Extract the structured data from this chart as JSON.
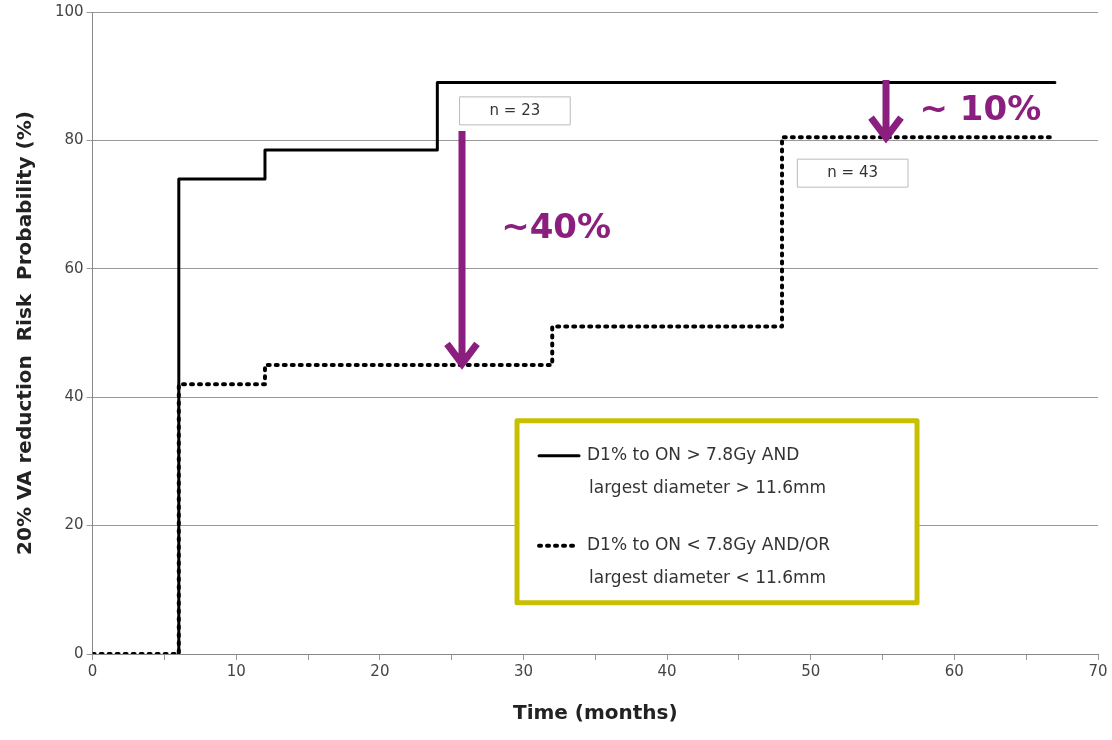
{
  "chart_data": {
    "type": "step",
    "xlabel": "Time (months)",
    "ylabel": "20% VA reduction  Risk  Probability (%)",
    "xlim": [
      0,
      70
    ],
    "xticks": [
      0,
      {
        "value": 5,
        "label": null
      },
      10,
      {
        "value": 15,
        "label": null
      },
      20,
      {
        "value": 25,
        "label": null
      },
      30,
      {
        "value": 35,
        "label": null
      },
      40,
      {
        "value": 45,
        "label": null
      },
      50,
      {
        "value": 55,
        "label": null
      },
      60,
      {
        "value": 65,
        "label": null
      },
      70
    ],
    "ylim": [
      0,
      100
    ],
    "yticks": [
      0,
      20,
      40,
      60,
      80,
      100
    ],
    "grid": "y",
    "legend": "bottom right",
    "marker": "none",
    "series": [
      {
        "name": "D1% to ON > 7.8Gy AND largest diameter > 11.6mm",
        "color": "#000000",
        "line_style": "solid",
        "x": [
          6,
          6,
          12,
          24,
          67
        ],
        "values": [
          0,
          74,
          78.5,
          89,
          89
        ]
      },
      {
        "name": "D1% to ON < 7.8Gy AND/OR largest diameter < 11.6mm",
        "color": "#000000",
        "line_style": "dotted",
        "x": [
          0,
          6,
          12,
          32,
          48,
          67
        ],
        "values": [
          0,
          42,
          45,
          51,
          80.5,
          80.5
        ]
      }
    ],
    "annotations": [
      "n = 23",
      "n = 43",
      "~40%",
      "~ 10%"
    ]
  }
}
